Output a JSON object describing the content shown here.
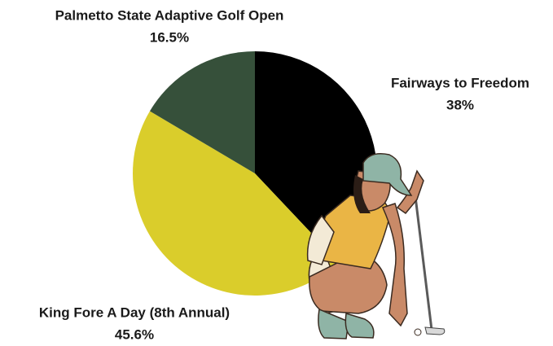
{
  "chart_data": {
    "type": "pie",
    "categories": [
      "Fairways to Freedom",
      "King Fore A Day (8th Annual)",
      "Palmetto State Adaptive Golf Open"
    ],
    "values": [
      38,
      45.6,
      16.5
    ],
    "value_labels": [
      "38%",
      "45.6%",
      "16.5%"
    ],
    "colors": [
      "#000000",
      "#dacd2b",
      "#36503a"
    ]
  }
}
